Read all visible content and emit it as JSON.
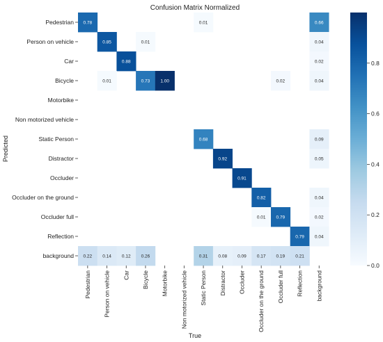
{
  "chart_data": {
    "type": "heatmap",
    "title": "Confusion Matrix Normalized",
    "xlabel": "True",
    "ylabel": "Predicted",
    "x_categories": [
      "Pedestrian",
      "Person on vehicle",
      "Car",
      "Bicycle",
      "Motorbike",
      "Non motorized vehicle",
      "Static Person",
      "Distractor",
      "Occluder",
      "Occluder on the ground",
      "Occluder full",
      "Reflection",
      "background"
    ],
    "y_categories": [
      "Pedestrian",
      "Person on vehicle",
      "Car",
      "Bicycle",
      "Motorbike",
      "Non motorized vehicle",
      "Static Person",
      "Distractor",
      "Occluder",
      "Occluder on the ground",
      "Occluder full",
      "Reflection",
      "background"
    ],
    "cells": [
      {
        "row": 0,
        "col": 0,
        "value": 0.78
      },
      {
        "row": 0,
        "col": 6,
        "value": 0.01
      },
      {
        "row": 0,
        "col": 12,
        "value": 0.66
      },
      {
        "row": 1,
        "col": 1,
        "value": 0.85
      },
      {
        "row": 1,
        "col": 3,
        "value": 0.01
      },
      {
        "row": 1,
        "col": 12,
        "value": 0.04
      },
      {
        "row": 2,
        "col": 2,
        "value": 0.88
      },
      {
        "row": 2,
        "col": 12,
        "value": 0.02
      },
      {
        "row": 3,
        "col": 1,
        "value": 0.01
      },
      {
        "row": 3,
        "col": 3,
        "value": 0.73
      },
      {
        "row": 3,
        "col": 4,
        "value": 1.0
      },
      {
        "row": 3,
        "col": 10,
        "value": 0.02
      },
      {
        "row": 3,
        "col": 12,
        "value": 0.04
      },
      {
        "row": 6,
        "col": 6,
        "value": 0.68
      },
      {
        "row": 6,
        "col": 12,
        "value": 0.09
      },
      {
        "row": 7,
        "col": 7,
        "value": 0.92
      },
      {
        "row": 7,
        "col": 12,
        "value": 0.05
      },
      {
        "row": 8,
        "col": 8,
        "value": 0.91
      },
      {
        "row": 9,
        "col": 9,
        "value": 0.82
      },
      {
        "row": 9,
        "col": 12,
        "value": 0.04
      },
      {
        "row": 10,
        "col": 9,
        "value": 0.01
      },
      {
        "row": 10,
        "col": 10,
        "value": 0.79
      },
      {
        "row": 10,
        "col": 12,
        "value": 0.02
      },
      {
        "row": 11,
        "col": 11,
        "value": 0.79
      },
      {
        "row": 11,
        "col": 12,
        "value": 0.04
      },
      {
        "row": 12,
        "col": 0,
        "value": 0.22
      },
      {
        "row": 12,
        "col": 1,
        "value": 0.14
      },
      {
        "row": 12,
        "col": 2,
        "value": 0.12
      },
      {
        "row": 12,
        "col": 3,
        "value": 0.26
      },
      {
        "row": 12,
        "col": 6,
        "value": 0.31
      },
      {
        "row": 12,
        "col": 7,
        "value": 0.08
      },
      {
        "row": 12,
        "col": 8,
        "value": 0.09
      },
      {
        "row": 12,
        "col": 9,
        "value": 0.17
      },
      {
        "row": 12,
        "col": 10,
        "value": 0.19
      },
      {
        "row": 12,
        "col": 11,
        "value": 0.21
      }
    ],
    "colorbar": {
      "range": [
        0.0,
        1.0
      ],
      "ticks": [
        0.0,
        0.2,
        0.4,
        0.6,
        0.8
      ],
      "tick_labels": [
        "0.0",
        "0.2",
        "0.4",
        "0.6",
        "0.8"
      ],
      "colormap": "Blues"
    },
    "grid": false
  }
}
